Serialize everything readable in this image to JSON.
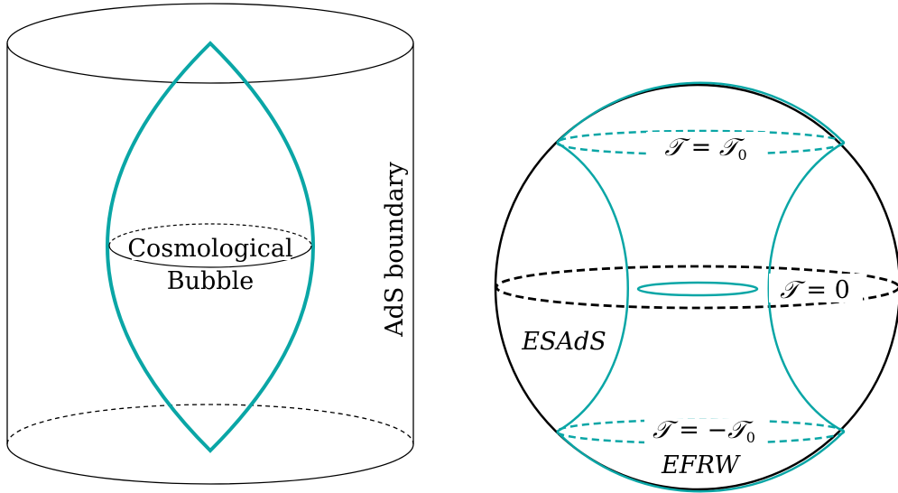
{
  "colors": {
    "teal": "#0aa6a6",
    "black": "#000000",
    "background": "#ffffff"
  },
  "left_figure": {
    "bubble_label_line1": "Cosmological",
    "bubble_label_line2": "Bubble",
    "boundary_label": "AdS boundary"
  },
  "right_figure": {
    "top_label": {
      "lhs": "𝒯",
      "eq": " = ",
      "rhs": "𝒯",
      "rhs_sub": "0"
    },
    "middle_label": {
      "lhs": "𝒯",
      "eq": " = ",
      "rhs": "0"
    },
    "bottom_label": {
      "lhs": "𝒯",
      "eq": " = −",
      "rhs": "𝒯",
      "rhs_sub": "0"
    },
    "region_left_label": "ESAdS",
    "region_bottom_label": "EFRW"
  }
}
